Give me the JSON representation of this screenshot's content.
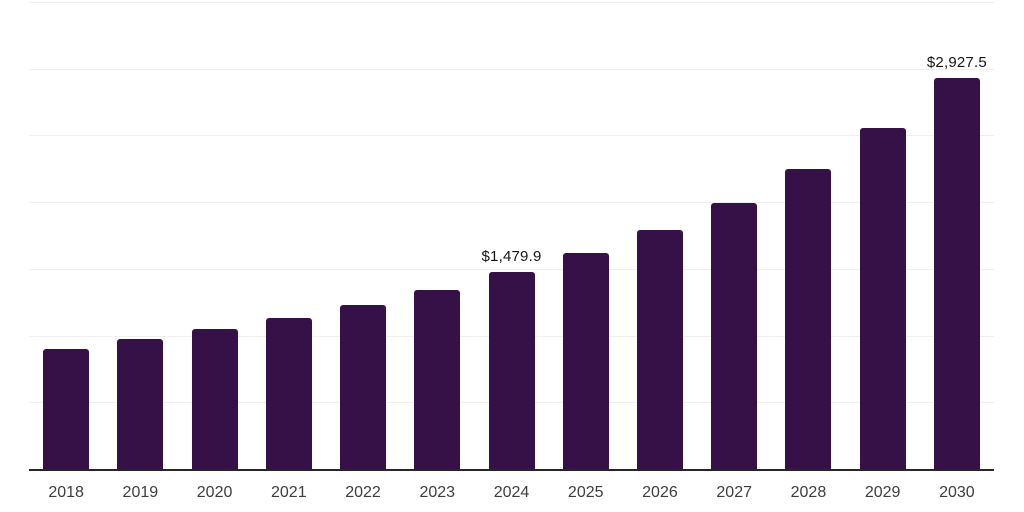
{
  "chart_data": {
    "type": "bar",
    "title": "",
    "xlabel": "",
    "ylabel": "",
    "categories": [
      "2018",
      "2019",
      "2020",
      "2021",
      "2022",
      "2023",
      "2024",
      "2025",
      "2026",
      "2027",
      "2028",
      "2029",
      "2030"
    ],
    "values": [
      896,
      971,
      1046,
      1135,
      1232,
      1344,
      1479.9,
      1621,
      1792,
      1994,
      2248,
      2554,
      2927.5
    ],
    "data_labels": [
      {
        "category": "2024",
        "text": "$1,479.9"
      },
      {
        "category": "2030",
        "text": "$2,927.5"
      }
    ],
    "ylim": [
      0,
      3500
    ],
    "gridline_step": 500,
    "grid": "horizontal",
    "legend": "none",
    "y_tick_labels_visible": false,
    "colors": {
      "bar": "#351148",
      "axis_line": "#262626",
      "gridline": "#f0f0f0",
      "data_label": "#141414",
      "tick_label": "#3d3d3d",
      "background": "#ffffff"
    }
  }
}
